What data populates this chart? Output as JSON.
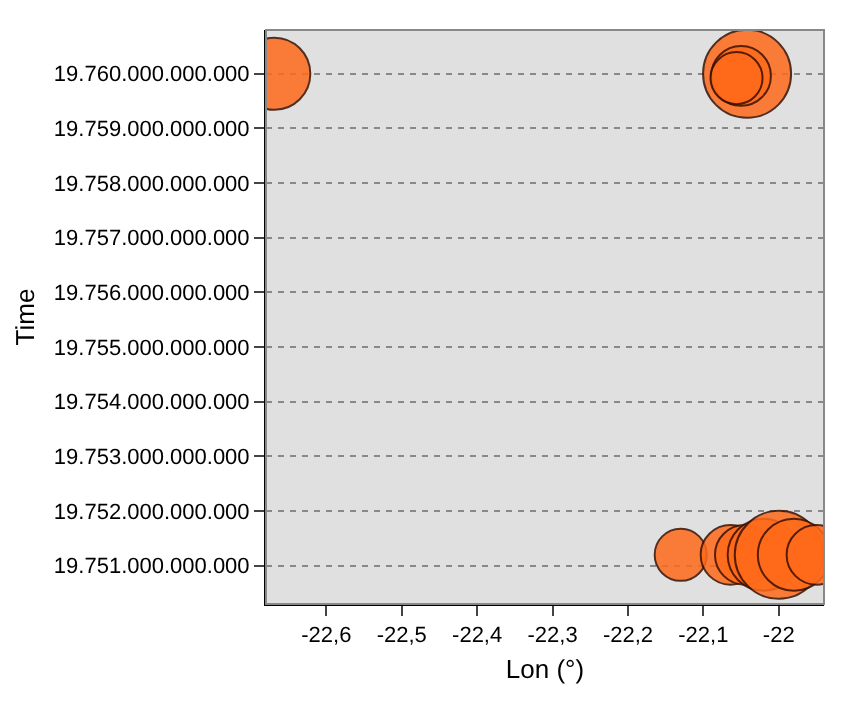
{
  "chart_data": {
    "type": "bubble",
    "xlabel": "Lon (°)",
    "ylabel": "Time",
    "x": [
      -22.669,
      -22.042,
      -22.05,
      -22.056,
      -22.13,
      -22.064,
      -22.045,
      -22.02,
      -22.0,
      -21.98,
      -21.95
    ],
    "values": [
      19760000000000,
      19760000000000,
      19759960000000,
      19759920000000,
      19751200000000,
      19751200000000,
      19751200000000,
      19751200000000,
      19751200000000,
      19751200000000,
      19751200000000
    ],
    "sizes": [
      0.67,
      1,
      0.46,
      0.35,
      0.35,
      0.46,
      0.46,
      0.67,
      1,
      0.67,
      0.46
    ],
    "color": "#ff6a1a",
    "xlim": [
      -22.68,
      -21.94
    ],
    "xticks": [
      {
        "value": -22.6,
        "label": "-22,6"
      },
      {
        "value": -22.5,
        "label": "-22,5"
      },
      {
        "value": -22.4,
        "label": "-22,4"
      },
      {
        "value": -22.3,
        "label": "-22,3"
      },
      {
        "value": -22.2,
        "label": "-22,2"
      },
      {
        "value": -22.1,
        "label": "-22,1"
      },
      -22
    ],
    "ylim": [
      19750300000000,
      19760800000000
    ],
    "yticks": [
      {
        "value": 19751000000000,
        "label": "19.751.000.000.000"
      },
      {
        "value": 19752000000000,
        "label": "19.752.000.000.000"
      },
      {
        "value": 19753000000000,
        "label": "19.753.000.000.000"
      },
      {
        "value": 19754000000000,
        "label": "19.754.000.000.000"
      },
      {
        "value": 19755000000000,
        "label": "19.755.000.000.000"
      },
      {
        "value": 19756000000000,
        "label": "19.756.000.000.000"
      },
      {
        "value": 19757000000000,
        "label": "19.757.000.000.000"
      },
      {
        "value": 19758000000000,
        "label": "19.758.000.000.000"
      },
      {
        "value": 19759000000000,
        "label": "19.759.000.000.000"
      },
      {
        "value": 19760000000000,
        "label": "19.760.000.000.000"
      }
    ],
    "grid": "y"
  }
}
